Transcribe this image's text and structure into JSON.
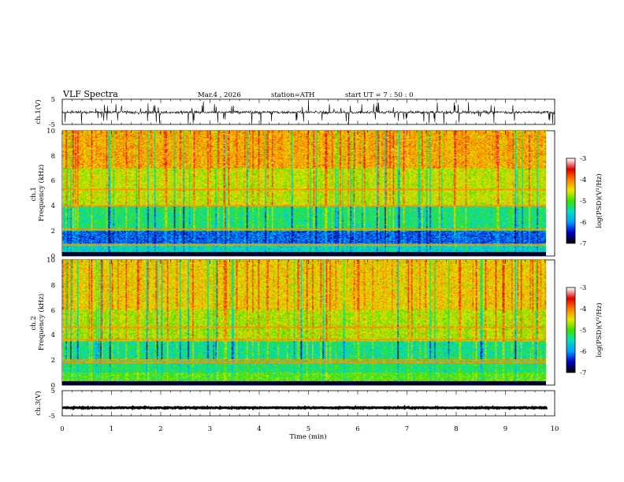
{
  "header": {
    "title": "VLF  Spectra",
    "date": "Mar.4  , 2026",
    "station": "station=ATH",
    "start": "start  UT  =   7  : 50 : 0"
  },
  "colors": {
    "waveform": "#000000",
    "colormap": [
      "#000000",
      "#0000c8",
      "#00a0ff",
      "#00e0c0",
      "#40e000",
      "#e8e800",
      "#ff8000",
      "#e00000",
      "#ffffff"
    ]
  },
  "chart_data": [
    {
      "type": "line",
      "name": "ch1-waveform",
      "ylabel": "ch.1(V)",
      "yticks": [
        "5",
        "-5"
      ],
      "ylim": [
        -5,
        5
      ],
      "xlim": [
        0,
        10
      ],
      "signal": {
        "mean": -0.2,
        "typical_amplitude": 1.0,
        "spikes_to": 4.5
      }
    },
    {
      "type": "heatmap",
      "name": "ch1-spectrogram",
      "ylabel": "ch.1\nFrequency  (kHz)",
      "ylabel_lines": [
        "ch.1",
        "Frequency  (kHz)"
      ],
      "yticks": [
        "0",
        "2",
        "4",
        "6",
        "8",
        "10"
      ],
      "ylim": [
        0,
        10
      ],
      "xlim": [
        0,
        9.85
      ],
      "colorbar": {
        "label": "log(PSD)(V²/Hz)",
        "ticks": [
          "-3",
          "-4",
          "-5",
          "-6",
          "-7"
        ],
        "range": [
          -7,
          -3
        ]
      },
      "bands_log_psd": [
        {
          "f_min": 0.0,
          "f_max": 0.3,
          "level": -7.0
        },
        {
          "f_min": 0.3,
          "f_max": 1.0,
          "level": -5.6
        },
        {
          "f_min": 1.0,
          "f_max": 2.0,
          "level": -6.2
        },
        {
          "f_min": 2.0,
          "f_max": 4.0,
          "level": -5.3
        },
        {
          "f_min": 4.0,
          "f_max": 7.0,
          "level": -4.6
        },
        {
          "f_min": 7.0,
          "f_max": 10.0,
          "level": -4.2
        }
      ],
      "lines_khz": [
        0.9,
        2.1,
        4.0,
        5.3
      ]
    },
    {
      "type": "heatmap",
      "name": "ch2-spectrogram",
      "ylabel": "ch.2\nFrequency  (kHz)",
      "ylabel_lines": [
        "ch.2",
        "Frequency  (kHz)"
      ],
      "yticks": [
        "0",
        "2",
        "4",
        "6",
        "8",
        "10"
      ],
      "ylim": [
        0,
        10
      ],
      "xlim": [
        0,
        9.85
      ],
      "colorbar": {
        "label": "log(PSD)(V²/Hz)",
        "ticks": [
          "-3",
          "-4",
          "-5",
          "-6",
          "-7"
        ],
        "range": [
          -7,
          -3
        ]
      },
      "bands_log_psd": [
        {
          "f_min": 0.0,
          "f_max": 0.3,
          "level": -7.0
        },
        {
          "f_min": 0.3,
          "f_max": 1.0,
          "level": -5.0
        },
        {
          "f_min": 1.0,
          "f_max": 2.2,
          "level": -5.3
        },
        {
          "f_min": 2.2,
          "f_max": 3.5,
          "level": -5.4
        },
        {
          "f_min": 3.5,
          "f_max": 6.0,
          "level": -4.7
        },
        {
          "f_min": 6.0,
          "f_max": 10.0,
          "level": -4.4
        }
      ],
      "lines_khz": [
        1.8,
        2.0,
        3.6,
        4.6
      ]
    },
    {
      "type": "line",
      "name": "ch3-waveform",
      "ylabel": "ch.3(V)",
      "yticks": [
        "5",
        "-5"
      ],
      "ylim": [
        -5,
        5
      ],
      "xlim": [
        0,
        9.85
      ],
      "signal": {
        "mean": -1.8,
        "typical_amplitude": 0.2
      }
    }
  ],
  "xaxis": {
    "label": "Time  (min)",
    "ticks": [
      "0",
      "1",
      "2",
      "3",
      "4",
      "5",
      "6",
      "7",
      "8",
      "9",
      "10"
    ],
    "range": [
      0,
      10
    ]
  }
}
